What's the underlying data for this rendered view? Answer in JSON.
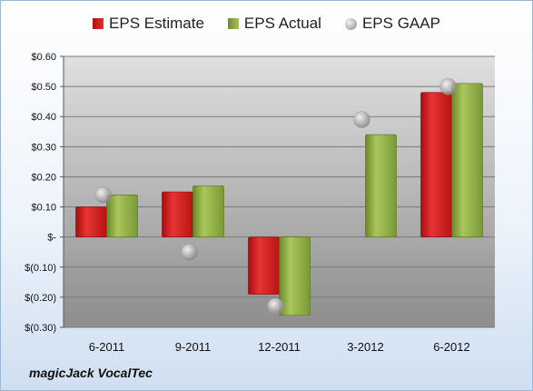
{
  "company": "magicJack VocalTec",
  "chart_data": {
    "type": "bar",
    "categories": [
      "6-2011",
      "9-2011",
      "12-2011",
      "3-2012",
      "6-2012"
    ],
    "series": [
      {
        "name": "EPS Estimate",
        "kind": "bar",
        "color": "#d42020",
        "values": [
          0.1,
          0.15,
          -0.19,
          null,
          0.48
        ]
      },
      {
        "name": "EPS Actual",
        "kind": "bar",
        "color": "#8fae45",
        "values": [
          0.14,
          0.17,
          -0.26,
          0.34,
          0.51
        ]
      },
      {
        "name": "EPS GAAP",
        "kind": "marker",
        "color": "#b8b8b8",
        "values": [
          0.14,
          -0.05,
          -0.23,
          0.39,
          0.5
        ]
      }
    ],
    "ylim": [
      -0.3,
      0.6
    ],
    "yticks": [
      0.6,
      0.5,
      0.4,
      0.3,
      0.2,
      0.1,
      0,
      -0.1,
      -0.2,
      -0.3
    ],
    "ytick_labels": [
      "$0.60",
      "$0.50",
      "$0.40",
      "$0.30",
      "$0.20",
      "$0.10",
      "$-",
      "$(0.10)",
      "$(0.20)",
      "$(0.30)"
    ],
    "legend_position": "top",
    "grid": true
  }
}
